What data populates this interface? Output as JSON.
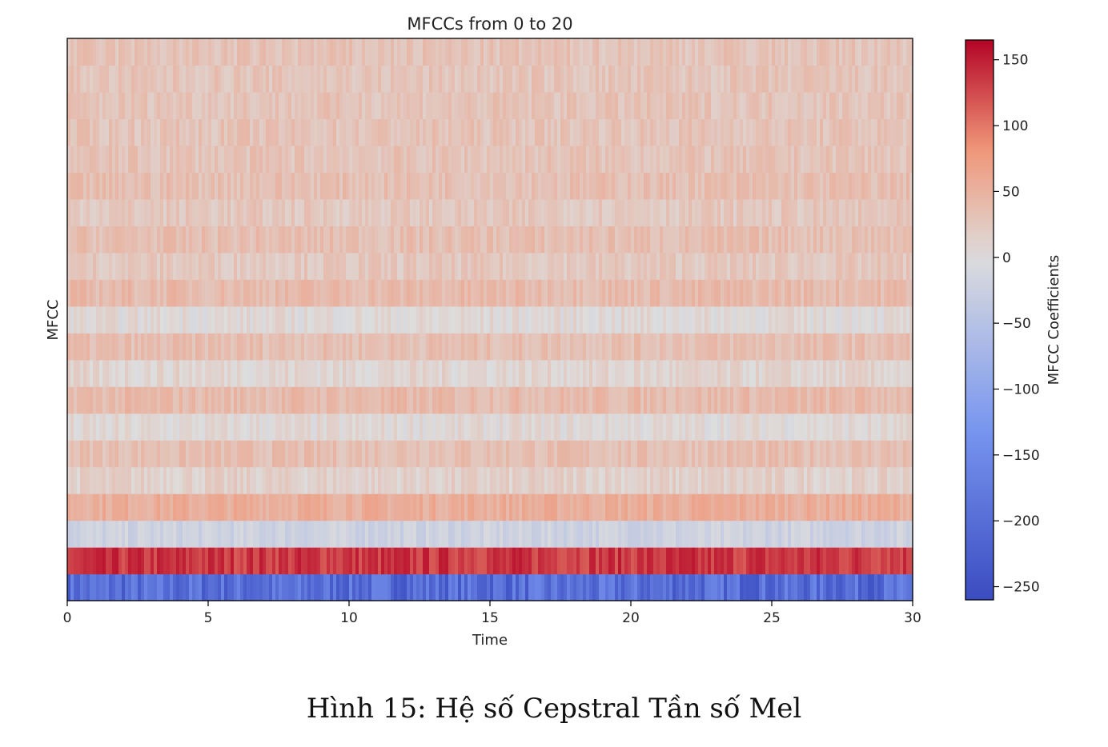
{
  "caption": "Hình 15: Hệ số Cepstral Tần số Mel",
  "chart_data": {
    "type": "heatmap",
    "title": "MFCCs from 0 to 20",
    "xlabel": "Time",
    "ylabel": "MFCC",
    "xlim": [
      0,
      30
    ],
    "x_ticks": [
      0,
      5,
      10,
      15,
      20,
      25,
      30
    ],
    "x_tick_labels": [
      "0",
      "5",
      "10",
      "15",
      "20",
      "25",
      "30"
    ],
    "colormap": "coolwarm",
    "colorbar": {
      "label": "MFCC Coefficients",
      "range": [
        -260,
        165
      ],
      "ticks": [
        150,
        100,
        50,
        0,
        -50,
        -100,
        -150,
        -200,
        -250
      ],
      "tick_labels": [
        "150",
        "100",
        "50",
        "0",
        "−50",
        "−100",
        "−150",
        "−200",
        "−250"
      ]
    },
    "rows": [
      {
        "mfcc": 0,
        "mean": -200
      },
      {
        "mfcc": 1,
        "mean": 135
      },
      {
        "mfcc": 2,
        "mean": -20
      },
      {
        "mfcc": 3,
        "mean": 55
      },
      {
        "mfcc": 4,
        "mean": 15
      },
      {
        "mfcc": 5,
        "mean": 35
      },
      {
        "mfcc": 6,
        "mean": 5
      },
      {
        "mfcc": 7,
        "mean": 40
      },
      {
        "mfcc": 8,
        "mean": 10
      },
      {
        "mfcc": 9,
        "mean": 35
      },
      {
        "mfcc": 10,
        "mean": 5
      },
      {
        "mfcc": 11,
        "mean": 40
      },
      {
        "mfcc": 12,
        "mean": 25
      },
      {
        "mfcc": 13,
        "mean": 35
      },
      {
        "mfcc": 14,
        "mean": 25
      },
      {
        "mfcc": 15,
        "mean": 35
      },
      {
        "mfcc": 16,
        "mean": 30
      },
      {
        "mfcc": 17,
        "mean": 30
      },
      {
        "mfcc": 18,
        "mean": 30
      },
      {
        "mfcc": 19,
        "mean": 28
      },
      {
        "mfcc": 20,
        "mean": 30
      }
    ],
    "colors": {
      "min": "#3b4cc0",
      "mid": "#dddddd",
      "max": "#b40426"
    }
  }
}
